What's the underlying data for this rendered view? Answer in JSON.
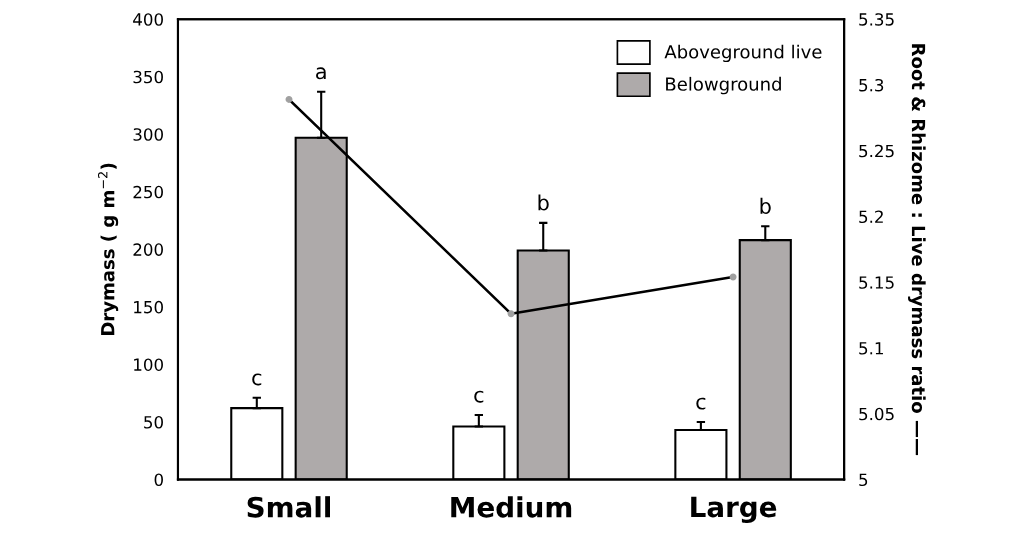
{
  "chart_data": {
    "type": "bar",
    "ylabel": "Drymass ( g m$^{−2}$)",
    "y2label": "Root & Rhizome : Live drymass ratio ——",
    "categories": [
      "Small",
      "Medium",
      "Large"
    ],
    "series": [
      {
        "name": "Aboveground live",
        "color": "#ffffff",
        "values": [
          62,
          46,
          43
        ],
        "errors": [
          [
            62,
            71
          ],
          [
            46,
            56
          ],
          [
            43,
            50
          ]
        ]
      },
      {
        "name": "Belowground",
        "color": "#aeaaaa",
        "values": [
          297,
          199,
          208
        ],
        "errors": [
          [
            297,
            337
          ],
          [
            199,
            223
          ],
          [
            208,
            220
          ]
        ]
      },
      {
        "type": "line",
        "axis": "y2",
        "color": "#000000",
        "marker": "circle",
        "values": [
          5.289,
          5.126,
          5.154
        ]
      }
    ],
    "ylim": [
      0,
      400
    ],
    "yticks": [
      0,
      50,
      100,
      150,
      200,
      250,
      300,
      350,
      400
    ],
    "y2lim": [
      5,
      5.35
    ],
    "y2ticks": [
      5,
      5.05,
      5.1,
      5.15,
      5.2,
      5.25,
      5.3,
      5.35
    ],
    "annotations": [
      "c",
      "a",
      "c",
      "b",
      "c",
      "b"
    ],
    "legend": "top right",
    "grid": false
  }
}
